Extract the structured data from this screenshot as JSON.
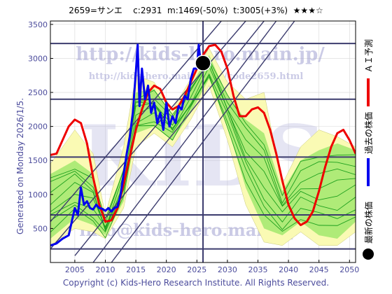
{
  "header": {
    "code": "2659=サンエ",
    "current": "c:2931",
    "mid": "m:1469(-50%)",
    "target": "t:3005(+3%)",
    "stars": "★★★☆"
  },
  "side_text": "Generated on Monday 2026/1/5.",
  "footer": "Copyright (c) Kids-Hero Research Institute. All Rights Reserved.",
  "watermarks": {
    "url_main": "http://kids-hero.main.jp/",
    "url_code": "http://kids-hero.main.jp/cs/code2659.html",
    "big": "KIDS",
    "mail": "info@kids-hero.main.jp"
  },
  "legend": {
    "ai_forecast": "ＡＩ予測",
    "past_price": "過去の株価",
    "latest_price": "最新の株価"
  },
  "colors": {
    "ai_forecast": "#ee0000",
    "past_price": "#0000ee",
    "latest_price": "#000000",
    "band_yellow": "#fafab4",
    "band_green": "#96e664",
    "line_green": "#1ea01e",
    "ref_lines": "#3c3c6e",
    "axis_text": "#4c4c9c"
  },
  "chart_data": {
    "type": "line",
    "xlim": [
      2001,
      2051
    ],
    "ylim": [
      0,
      3550
    ],
    "x_ticks": [
      2005,
      2010,
      2015,
      2020,
      2025,
      2030,
      2035,
      2040,
      2045,
      2050
    ],
    "y_ticks": [
      500,
      1000,
      1500,
      2000,
      2500,
      3000,
      3500
    ],
    "horizontal_refs": [
      200,
      700,
      1550,
      2400,
      3220
    ],
    "vertical_ref": 2026.0,
    "latest_point": {
      "x": 2026.0,
      "y": 2931
    },
    "diagonal_lines": [
      {
        "x": [
          2001,
          2033
        ],
        "y": [
          200,
          3550
        ]
      },
      {
        "x": [
          2001,
          2029
        ],
        "y": [
          600,
          3550
        ]
      },
      {
        "x": [
          2005,
          2036
        ],
        "y": [
          100,
          3550
        ]
      },
      {
        "x": [
          2008,
          2038
        ],
        "y": [
          0,
          3550
        ]
      },
      {
        "x": [
          2011,
          2041
        ],
        "y": [
          0,
          3550
        ]
      }
    ],
    "bands": {
      "outer_upper": {
        "x": [
          2001,
          2005,
          2008,
          2010,
          2013,
          2015,
          2018,
          2021,
          2024,
          2027,
          2030,
          2033,
          2036,
          2039,
          2042,
          2045,
          2048,
          2051
        ],
        "y": [
          1450,
          1950,
          1600,
          700,
          1700,
          2750,
          2650,
          2250,
          2700,
          3150,
          2650,
          2400,
          2500,
          1150,
          1700,
          1950,
          1850,
          1700
        ]
      },
      "outer_lower": {
        "x": [
          2001,
          2005,
          2008,
          2010,
          2013,
          2015,
          2018,
          2021,
          2024,
          2027,
          2030,
          2033,
          2036,
          2039,
          2042,
          2045,
          2048,
          2051
        ],
        "y": [
          250,
          500,
          450,
          350,
          800,
          1700,
          1900,
          1700,
          2100,
          2600,
          1800,
          850,
          300,
          250,
          450,
          250,
          250,
          450
        ]
      },
      "inner_upper": {
        "x": [
          2001,
          2005,
          2008,
          2010,
          2013,
          2015,
          2018,
          2021,
          2024,
          2027,
          2030,
          2033,
          2036,
          2039,
          2042,
          2045,
          2048,
          2051
        ],
        "y": [
          1300,
          1500,
          1300,
          600,
          1400,
          2500,
          2550,
          2150,
          2600,
          3050,
          2450,
          2100,
          1900,
          1050,
          1500,
          1650,
          1750,
          1650
        ]
      },
      "inner_lower": {
        "x": [
          2001,
          2005,
          2008,
          2010,
          2013,
          2015,
          2018,
          2021,
          2024,
          2027,
          2030,
          2033,
          2036,
          2039,
          2042,
          2045,
          2048,
          2051
        ],
        "y": [
          350,
          650,
          550,
          400,
          900,
          1900,
          2000,
          1800,
          2200,
          2700,
          2000,
          1100,
          500,
          400,
          600,
          400,
          350,
          600
        ]
      }
    },
    "series": [
      {
        "name": "ＡＩ予測",
        "x": [
          2001,
          2002,
          2003,
          2004,
          2005,
          2006,
          2007,
          2008,
          2009,
          2010,
          2011,
          2012,
          2013,
          2014,
          2015,
          2016,
          2017,
          2018,
          2019,
          2020,
          2021,
          2022,
          2023,
          2024,
          2025,
          2026,
          2027,
          2028,
          2029,
          2030,
          2031,
          2032,
          2033,
          2034,
          2035,
          2036,
          2037,
          2038,
          2039,
          2040,
          2041,
          2042,
          2043,
          2044,
          2045,
          2046,
          2047,
          2048,
          2049,
          2050,
          2051
        ],
        "y": [
          1580,
          1600,
          1800,
          2000,
          2100,
          2050,
          1750,
          1250,
          850,
          600,
          620,
          800,
          1150,
          1550,
          1950,
          2250,
          2500,
          2600,
          2550,
          2350,
          2250,
          2300,
          2450,
          2650,
          2850,
          3050,
          3180,
          3200,
          3100,
          2850,
          2450,
          2150,
          2150,
          2250,
          2280,
          2200,
          1950,
          1600,
          1200,
          850,
          650,
          550,
          600,
          750,
          1050,
          1400,
          1700,
          1900,
          1950,
          1800,
          1600
        ]
      },
      {
        "name": "過去の株価",
        "x": [
          2001,
          2002,
          2003,
          2004,
          2004.5,
          2005,
          2005.5,
          2006,
          2006.5,
          2007,
          2007.5,
          2008,
          2008.5,
          2009,
          2009.5,
          2010,
          2010.5,
          2011,
          2011.5,
          2012,
          2012.5,
          2013,
          2013.5,
          2014,
          2014.5,
          2015,
          2015.3,
          2015.6,
          2016,
          2016.5,
          2017,
          2017.5,
          2018,
          2018.5,
          2019,
          2019.5,
          2020,
          2020.5,
          2021,
          2021.5,
          2022,
          2022.5,
          2023,
          2023.5,
          2024,
          2024.5,
          2025,
          2025.3,
          2025.6
        ],
        "y": [
          250,
          280,
          350,
          400,
          600,
          800,
          700,
          1100,
          850,
          900,
          800,
          780,
          850,
          800,
          790,
          760,
          800,
          750,
          800,
          820,
          1000,
          1300,
          1600,
          1850,
          2200,
          2800,
          3200,
          2300,
          2850,
          2400,
          2600,
          2200,
          2350,
          2050,
          2200,
          1950,
          2350,
          2000,
          2150,
          2050,
          2300,
          2250,
          2450,
          2400,
          2700,
          2850,
          2850,
          3200,
          2950
        ]
      }
    ]
  }
}
